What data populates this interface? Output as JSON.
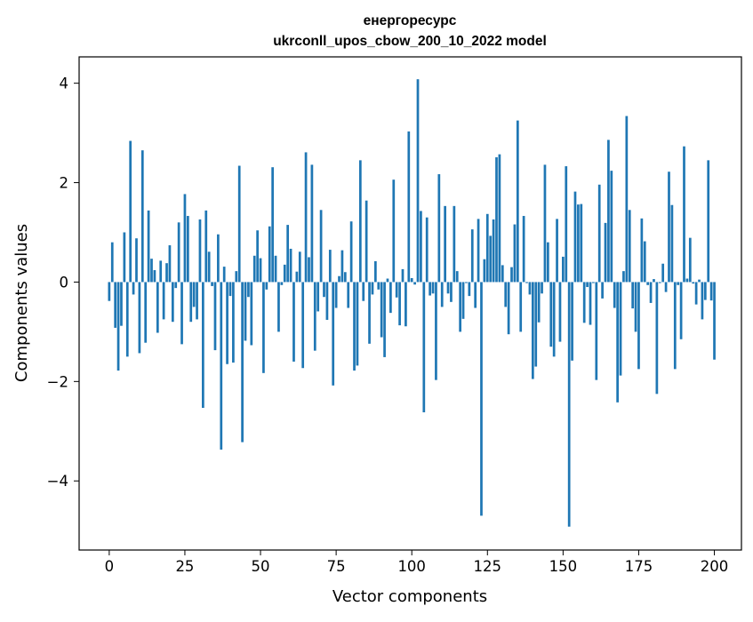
{
  "chart_data": {
    "type": "bar",
    "title_line1": "енергоресурс",
    "title_line2": "ukrconll_upos_cbow_200_10_2022 model",
    "xlabel": "Vector components",
    "ylabel": "Components values",
    "xlim": [
      -9.95,
      208.95
    ],
    "ylim": [
      -5.39,
      4.53
    ],
    "xticks": [
      {
        "value": 0,
        "label": "0"
      },
      {
        "value": 25,
        "label": "25"
      },
      {
        "value": 50,
        "label": "50"
      },
      {
        "value": 75,
        "label": "75"
      },
      {
        "value": 100,
        "label": "100"
      },
      {
        "value": 125,
        "label": "125"
      },
      {
        "value": 150,
        "label": "150"
      },
      {
        "value": 175,
        "label": "175"
      },
      {
        "value": 200,
        "label": "200"
      }
    ],
    "yticks": [
      {
        "value": -4,
        "label": "−4"
      },
      {
        "value": -2,
        "label": "−2"
      },
      {
        "value": 0,
        "label": "0"
      },
      {
        "value": 2,
        "label": "2"
      },
      {
        "value": 4,
        "label": "4"
      }
    ],
    "grid": false,
    "bar_color": "#1f77b4",
    "values": [
      -0.38,
      0.8,
      -0.92,
      -1.78,
      -0.88,
      1.0,
      -1.5,
      2.84,
      -0.25,
      0.88,
      -1.43,
      2.65,
      -1.22,
      1.44,
      0.47,
      0.24,
      -1.02,
      0.43,
      -0.75,
      0.38,
      0.74,
      -0.8,
      -0.12,
      1.2,
      -1.25,
      1.77,
      1.33,
      -0.8,
      -0.5,
      -0.75,
      1.26,
      -2.53,
      1.44,
      0.61,
      -0.08,
      -1.37,
      0.96,
      -3.37,
      0.31,
      -1.65,
      -0.28,
      -1.62,
      0.22,
      2.34,
      -3.22,
      -1.18,
      -0.3,
      -1.27,
      0.53,
      1.04,
      0.48,
      -1.83,
      -0.15,
      1.12,
      2.31,
      0.53,
      -1.0,
      -0.06,
      0.35,
      1.15,
      0.67,
      -1.6,
      0.21,
      0.61,
      -1.73,
      2.61,
      0.5,
      2.36,
      -1.38,
      -0.59,
      1.45,
      -0.3,
      -0.76,
      0.65,
      -2.08,
      -0.52,
      0.12,
      0.64,
      0.2,
      -0.52,
      1.22,
      -1.78,
      -1.68,
      2.45,
      -0.38,
      1.64,
      -1.24,
      -0.25,
      0.42,
      -0.15,
      -1.11,
      -1.51,
      0.07,
      -0.62,
      2.06,
      -0.31,
      -0.87,
      0.26,
      -0.89,
      3.03,
      0.08,
      -0.05,
      4.08,
      1.43,
      -2.62,
      1.3,
      -0.27,
      -0.23,
      -1.97,
      2.17,
      -0.5,
      1.53,
      -0.23,
      -0.4,
      1.53,
      0.22,
      -1.0,
      -0.74,
      -0.02,
      -0.28,
      1.06,
      -0.52,
      1.27,
      -4.7,
      0.46,
      1.37,
      0.93,
      1.26,
      2.51,
      2.57,
      0.34,
      -0.5,
      -1.05,
      0.3,
      1.16,
      3.25,
      -1.0,
      1.33,
      -0.02,
      -0.25,
      -1.95,
      -1.7,
      -0.81,
      -0.23,
      2.36,
      0.8,
      -1.3,
      -1.5,
      1.27,
      -1.2,
      0.51,
      2.33,
      -4.92,
      -1.58,
      1.82,
      1.56,
      1.57,
      -0.82,
      -0.1,
      -0.86,
      -0.02,
      -1.97,
      1.96,
      -0.33,
      1.19,
      2.86,
      2.24,
      -0.52,
      -2.42,
      -1.88,
      0.22,
      3.34,
      1.45,
      -0.53,
      -1.0,
      -1.75,
      1.28,
      0.82,
      -0.06,
      -0.42,
      0.06,
      -2.25,
      -0.02,
      0.37,
      -0.2,
      2.22,
      1.55,
      -1.75,
      -0.06,
      -1.15,
      2.73,
      0.07,
      0.89,
      -0.03,
      -0.45,
      0.05,
      -0.75,
      -0.36,
      2.45,
      -0.37,
      -1.56
    ]
  }
}
